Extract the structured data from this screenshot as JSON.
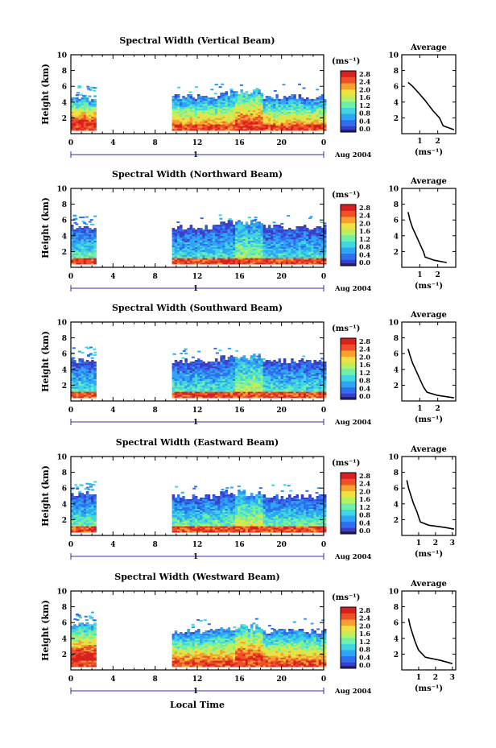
{
  "figure": {
    "xlabel": "Local Time",
    "date_label": "Aug 2004",
    "day_label": "1",
    "colorbar_unit": "(ms⁻¹)",
    "profile_title": "Average",
    "profile_xlabel": "(ms⁻¹)",
    "ylabel": "Height (km)"
  },
  "colormap": [
    "#2a1f6e",
    "#3a3ec8",
    "#2f6ff0",
    "#2ea6f5",
    "#3fd6e0",
    "#6ef0a8",
    "#b8f060",
    "#f0e040",
    "#f8a030",
    "#f05028",
    "#d82020"
  ],
  "chart_data": [
    {
      "type": "heatmap",
      "title": "Spectral Width (Vertical Beam)",
      "xlabel": "Local Time",
      "ylabel": "Height (km)",
      "xlim": [
        0,
        24
      ],
      "ylim": [
        0,
        10
      ],
      "xticks": [
        "0",
        "4",
        "8",
        "12",
        "16",
        "20",
        "0"
      ],
      "yticks": [
        "2",
        "4",
        "6",
        "8",
        "10"
      ],
      "colorbar": {
        "label": "(ms⁻¹)",
        "ticks": [
          "0.0",
          "0.4",
          "0.8",
          "1.2",
          "1.6",
          "2.0",
          "2.4",
          "2.8"
        ],
        "range": [
          0,
          2.8
        ]
      },
      "data_segments": [
        {
          "t": [
            0,
            2.2
          ],
          "top_km": 4.4,
          "base_level": 2.4
        },
        {
          "t": [
            9.6,
            24
          ],
          "top_km": 4.6,
          "base_level": 1.9
        }
      ],
      "profile": {
        "title": "Average",
        "xlabel": "(ms⁻¹)",
        "xticks": [
          "1",
          "2"
        ],
        "xlim": [
          0,
          3
        ],
        "yticks": [
          "2",
          "4",
          "6",
          "8",
          "10"
        ],
        "ylim": [
          0,
          10
        ],
        "points": [
          [
            2.9,
            0.5
          ],
          [
            2.3,
            1.0
          ],
          [
            2.2,
            1.5
          ],
          [
            2.1,
            2.0
          ],
          [
            1.9,
            2.5
          ],
          [
            1.7,
            3.0
          ],
          [
            1.5,
            3.6
          ],
          [
            1.3,
            4.2
          ],
          [
            1.0,
            5.0
          ],
          [
            0.8,
            5.5
          ],
          [
            0.6,
            6.0
          ],
          [
            0.35,
            6.5
          ]
        ]
      }
    },
    {
      "type": "heatmap",
      "title": "Spectral Width (Northward Beam)",
      "xlabel": "Local Time",
      "ylabel": "Height (km)",
      "xlim": [
        0,
        24
      ],
      "ylim": [
        0,
        10
      ],
      "xticks": [
        "0",
        "4",
        "8",
        "12",
        "16",
        "20",
        "0"
      ],
      "yticks": [
        "2",
        "4",
        "6",
        "8",
        "10"
      ],
      "colorbar": {
        "label": "(ms⁻¹)",
        "ticks": [
          "0.0",
          "0.4",
          "0.8",
          "1.2",
          "1.6",
          "2.0",
          "2.4",
          "2.8"
        ],
        "range": [
          0,
          2.8
        ]
      },
      "data_segments": [
        {
          "t": [
            0,
            2.2
          ],
          "top_km": 5.0,
          "base_level": 1.2
        },
        {
          "t": [
            9.6,
            24
          ],
          "top_km": 5.0,
          "base_level": 1.0
        }
      ],
      "profile": {
        "title": "Average",
        "xlabel": "(ms⁻¹)",
        "xticks": [
          "1",
          "2"
        ],
        "xlim": [
          0,
          3
        ],
        "yticks": [
          "2",
          "4",
          "6",
          "8",
          "10"
        ],
        "ylim": [
          0,
          10
        ],
        "points": [
          [
            2.5,
            0.6
          ],
          [
            1.8,
            0.9
          ],
          [
            1.3,
            1.3
          ],
          [
            1.2,
            2.0
          ],
          [
            1.0,
            3.0
          ],
          [
            0.8,
            4.0
          ],
          [
            0.6,
            5.0
          ],
          [
            0.45,
            6.0
          ],
          [
            0.35,
            7.0
          ]
        ]
      }
    },
    {
      "type": "heatmap",
      "title": "Spectral Width (Southward Beam)",
      "xlabel": "Local Time",
      "ylabel": "Height (km)",
      "xlim": [
        0,
        24
      ],
      "ylim": [
        0,
        10
      ],
      "xticks": [
        "0",
        "4",
        "8",
        "12",
        "16",
        "20",
        "0"
      ],
      "yticks": [
        "2",
        "4",
        "6",
        "8",
        "10"
      ],
      "colorbar": {
        "label": "(ms⁻¹)",
        "ticks": [
          "0.0",
          "0.4",
          "0.8",
          "1.2",
          "1.6",
          "2.0",
          "2.4",
          "2.8"
        ],
        "range": [
          0,
          2.8
        ]
      },
      "data_segments": [
        {
          "t": [
            0,
            2.2
          ],
          "top_km": 5.1,
          "base_level": 1.1
        },
        {
          "t": [
            9.6,
            24
          ],
          "top_km": 5.0,
          "base_level": 1.1
        }
      ],
      "profile": {
        "title": "Average",
        "xlabel": "(ms⁻¹)",
        "xticks": [
          "1",
          "2"
        ],
        "xlim": [
          0,
          3
        ],
        "yticks": [
          "2",
          "4",
          "6",
          "8",
          "10"
        ],
        "ylim": [
          0,
          10
        ],
        "points": [
          [
            2.9,
            0.4
          ],
          [
            2.0,
            0.7
          ],
          [
            1.4,
            1.1
          ],
          [
            1.2,
            1.8
          ],
          [
            1.0,
            2.8
          ],
          [
            0.8,
            3.8
          ],
          [
            0.6,
            4.8
          ],
          [
            0.45,
            5.8
          ],
          [
            0.35,
            6.6
          ]
        ]
      }
    },
    {
      "type": "heatmap",
      "title": "Spectral Width (Eastward Beam)",
      "xlabel": "Local Time",
      "ylabel": "Height (km)",
      "xlim": [
        0,
        24
      ],
      "ylim": [
        0,
        10
      ],
      "xticks": [
        "0",
        "4",
        "8",
        "12",
        "16",
        "20",
        "0"
      ],
      "yticks": [
        "2",
        "4",
        "6",
        "8",
        "10"
      ],
      "colorbar": {
        "label": "(ms⁻¹)",
        "ticks": [
          "0.0",
          "0.4",
          "0.8",
          "1.2",
          "1.6",
          "2.0",
          "2.4",
          "2.8"
        ],
        "range": [
          0,
          2.8
        ]
      },
      "data_segments": [
        {
          "t": [
            0,
            2.2
          ],
          "top_km": 5.2,
          "base_level": 1.2
        },
        {
          "t": [
            9.6,
            24
          ],
          "top_km": 4.8,
          "base_level": 1.2
        }
      ],
      "profile": {
        "title": "Average",
        "xlabel": "(ms⁻¹)",
        "xticks": [
          "1",
          "2",
          "3"
        ],
        "xlim": [
          0,
          3.2
        ],
        "yticks": [
          "2",
          "4",
          "6",
          "8",
          "10"
        ],
        "ylim": [
          0,
          10
        ],
        "points": [
          [
            3.1,
            0.8
          ],
          [
            2.6,
            1.0
          ],
          [
            1.6,
            1.3
          ],
          [
            1.1,
            1.7
          ],
          [
            0.9,
            3.0
          ],
          [
            0.7,
            4.0
          ],
          [
            0.55,
            5.0
          ],
          [
            0.4,
            6.0
          ],
          [
            0.3,
            7.0
          ]
        ]
      }
    },
    {
      "type": "heatmap",
      "title": "Spectral Width (Westward Beam)",
      "xlabel": "Local Time",
      "ylabel": "Height (km)",
      "xlim": [
        0,
        24
      ],
      "ylim": [
        0,
        10
      ],
      "xticks": [
        "0",
        "4",
        "8",
        "12",
        "16",
        "20",
        "0"
      ],
      "yticks": [
        "2",
        "4",
        "6",
        "8",
        "10"
      ],
      "colorbar": {
        "label": "(ms⁻¹)",
        "ticks": [
          "0.0",
          "0.4",
          "0.8",
          "1.2",
          "1.6",
          "2.0",
          "2.4",
          "2.8"
        ],
        "range": [
          0,
          2.8
        ]
      },
      "data_segments": [
        {
          "t": [
            0,
            2.2
          ],
          "top_km": 5.6,
          "base_level": 2.6
        },
        {
          "t": [
            9.6,
            24
          ],
          "top_km": 4.8,
          "base_level": 2.0
        }
      ],
      "profile": {
        "title": "Average",
        "xlabel": "(ms⁻¹)",
        "xticks": [
          "1",
          "2",
          "3"
        ],
        "xlim": [
          0,
          3.2
        ],
        "yticks": [
          "2",
          "4",
          "6",
          "8",
          "10"
        ],
        "ylim": [
          0,
          10
        ],
        "points": [
          [
            3.0,
            0.8
          ],
          [
            2.3,
            1.2
          ],
          [
            1.4,
            1.6
          ],
          [
            1.0,
            2.5
          ],
          [
            0.8,
            3.5
          ],
          [
            0.65,
            4.5
          ],
          [
            0.5,
            5.5
          ],
          [
            0.4,
            6.5
          ]
        ]
      }
    }
  ]
}
